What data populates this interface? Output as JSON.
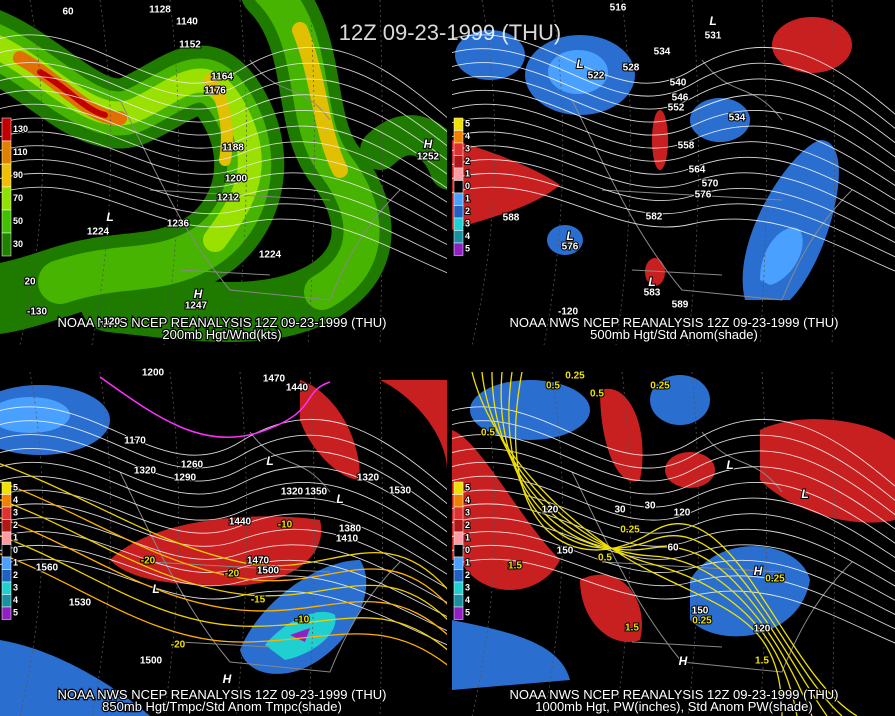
{
  "title": "12Z 09-23-1999 (THU)",
  "panels": [
    {
      "caption": "NOAA NWS NCEP REANALYSIS 12Z 09-23-1999 (THU)",
      "subtitle": "200mb Hgt/Wnd(kts)",
      "legend": [
        "130",
        "110",
        "90",
        "70",
        "50",
        "30"
      ],
      "labels": [
        "1128",
        "1140",
        "1152",
        "1164",
        "1176",
        "1188",
        "1200",
        "1212",
        "1236",
        "1224",
        "1224",
        "1252",
        "1247",
        "L",
        "H",
        "H",
        "60",
        "-130",
        "-120",
        "20"
      ]
    },
    {
      "caption": "NOAA NWS NCEP REANALYSIS 12Z 09-23-1999 (THU)",
      "subtitle": "500mb Hgt/Std Anom(shade)",
      "legend": [
        "5",
        "4",
        "3",
        "2",
        "1",
        "0",
        "1",
        "2",
        "3",
        "4",
        "5"
      ],
      "labels": [
        "516",
        "531",
        "534",
        "522",
        "528",
        "540",
        "546",
        "552",
        "534",
        "558",
        "564",
        "570",
        "576",
        "582",
        "588",
        "576",
        "583",
        "589",
        "L",
        "L",
        "L",
        "L",
        "-120"
      ]
    },
    {
      "caption": "NOAA NWS NCEP REANALYSIS 12Z 09-23-1999 (THU)",
      "subtitle": "850mb Hgt/Tmpc/Std Anom Tmpc(shade)",
      "legend": [
        "5",
        "4",
        "3",
        "2",
        "1",
        "0",
        "1",
        "2",
        "3",
        "4",
        "5"
      ],
      "labels": [
        "1200",
        "1470",
        "1440",
        "1170",
        "1320",
        "1290",
        "1260",
        "1320",
        "1350",
        "1320",
        "1530",
        "1440",
        "1380",
        "1410",
        "1470",
        "1500",
        "1560",
        "1530",
        "1500",
        "-10",
        "-20",
        "-20",
        "-15",
        "-10",
        "-20",
        "H",
        "L",
        "L",
        "L"
      ]
    },
    {
      "caption": "NOAA NWS NCEP REANALYSIS 12Z 09-23-1999 (THU)",
      "subtitle": "1000mb Hgt, PW(inches), Std Anom PW(shade)",
      "legend": [
        "5",
        "4",
        "3",
        "2",
        "1",
        "0",
        "1",
        "2",
        "3",
        "4",
        "5"
      ],
      "labels": [
        "0.25",
        "0.5",
        "0.5",
        "0.25",
        "0.5",
        "120",
        "30",
        "30",
        "120",
        "0.25",
        "150",
        "1.5",
        "0.5",
        "0.25",
        "150",
        "120",
        "0.25",
        "1.5",
        "1.5",
        "60",
        "L",
        "L",
        "H",
        "H"
      ]
    }
  ]
}
